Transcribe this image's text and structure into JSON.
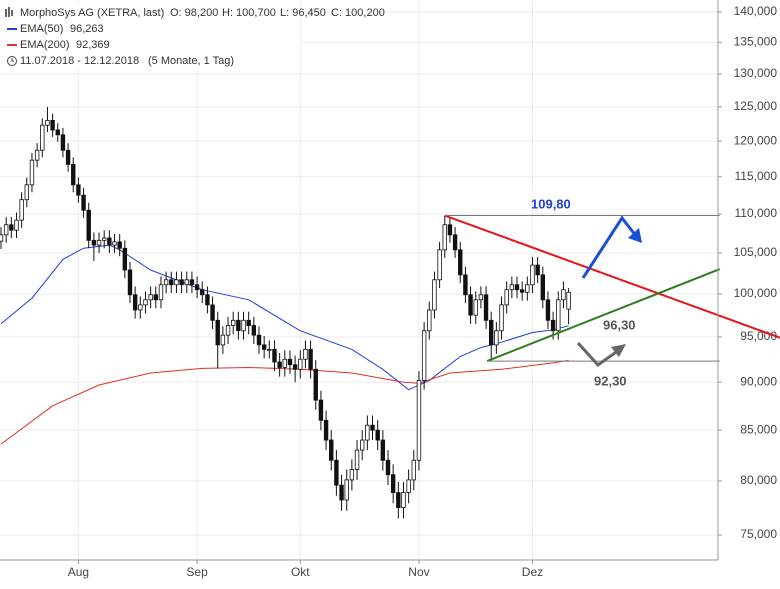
{
  "chart_data": {
    "type": "candlestick",
    "header": {
      "title": "MorphoSys AG (XETRA, last)",
      "open": "O: 98,200",
      "high": "H: 100,700",
      "low": "L: 96,450",
      "close": "C: 100,200",
      "period": "11.07.2018 - 12.12.2018",
      "span": "(5 Monate, 1 Tag)"
    },
    "categories": [
      null,
      null,
      null,
      null,
      null,
      null,
      null,
      null,
      null,
      null,
      null,
      null,
      null,
      null,
      null,
      "Aug",
      null,
      null,
      null,
      null,
      null,
      null,
      null,
      null,
      null,
      null,
      null,
      null,
      null,
      null,
      null,
      null,
      null,
      null,
      null,
      null,
      null,
      null,
      "Sep",
      null,
      null,
      null,
      null,
      null,
      null,
      null,
      null,
      null,
      null,
      null,
      null,
      null,
      null,
      null,
      null,
      null,
      null,
      null,
      "Okt",
      null,
      null,
      null,
      null,
      null,
      null,
      null,
      null,
      null,
      null,
      null,
      null,
      null,
      null,
      null,
      null,
      null,
      null,
      null,
      null,
      null,
      null,
      "Nov",
      null,
      null,
      null,
      null,
      null,
      null,
      null,
      null,
      null,
      null,
      null,
      null,
      null,
      null,
      null,
      null,
      null,
      null,
      null,
      null,
      null,
      "Dez",
      null,
      null,
      null,
      null,
      null,
      null,
      null
    ],
    "open": [
      106.5,
      107.3,
      108.6,
      107.9,
      109.2,
      111.9,
      113.9,
      117.3,
      118.7,
      122.3,
      123.0,
      121.6,
      120.9,
      118.7,
      116.7,
      113.9,
      112.5,
      110.5,
      106.6,
      106.0,
      106.6,
      106.9,
      106.0,
      106.4,
      105.6,
      102.9,
      99.9,
      98.1,
      98.7,
      99.3,
      99.9,
      99.3,
      101.1,
      101.7,
      101.1,
      101.7,
      101.1,
      101.7,
      101.1,
      100.5,
      99.9,
      98.7,
      96.9,
      94.1,
      95.2,
      96.3,
      96.9,
      95.7,
      96.9,
      96.3,
      95.2,
      94.1,
      93.6,
      93.6,
      92.2,
      91.6,
      92.5,
      91.9,
      91.4,
      92.5,
      93.6,
      91.4,
      88.1,
      86.0,
      84.0,
      82.0,
      79.6,
      78.2,
      80.1,
      81.1,
      83.0,
      84.0,
      85.5,
      85.0,
      84.0,
      82.0,
      80.6,
      78.9,
      77.5,
      78.9,
      80.1,
      82.0,
      90.2,
      95.7,
      98.1,
      101.7,
      105.4,
      108.6,
      107.3,
      105.4,
      102.3,
      99.9,
      97.5,
      99.3,
      99.9,
      96.9,
      94.1,
      95.7,
      98.7,
      100.5,
      101.1,
      100.5,
      100.2,
      101.1,
      103.5,
      102.3,
      99.3,
      96.9,
      95.7,
      99.3,
      98.2
    ],
    "high": [
      108.3,
      109.6,
      109.6,
      110.2,
      112.9,
      114.9,
      118.3,
      119.7,
      123.3,
      125.0,
      124.0,
      122.6,
      121.9,
      119.7,
      117.7,
      114.9,
      113.5,
      111.5,
      107.6,
      107.6,
      107.9,
      107.9,
      107.4,
      107.4,
      106.6,
      103.9,
      100.9,
      99.7,
      100.3,
      100.9,
      100.9,
      102.1,
      102.7,
      102.7,
      102.7,
      102.7,
      102.7,
      102.7,
      102.1,
      101.5,
      100.9,
      99.7,
      97.9,
      96.2,
      97.3,
      97.9,
      97.9,
      97.9,
      97.9,
      97.3,
      96.2,
      95.1,
      94.6,
      94.6,
      93.2,
      93.5,
      93.5,
      92.9,
      93.5,
      94.6,
      94.6,
      92.4,
      89.1,
      87.0,
      85.0,
      83.0,
      80.6,
      81.1,
      82.1,
      84.0,
      85.0,
      86.5,
      86.5,
      86.0,
      85.0,
      83.0,
      81.6,
      79.9,
      79.9,
      81.1,
      83.0,
      91.2,
      96.7,
      99.1,
      102.7,
      106.4,
      109.8,
      109.6,
      108.3,
      106.4,
      103.3,
      100.9,
      100.3,
      100.9,
      100.9,
      97.9,
      96.7,
      99.7,
      101.5,
      102.1,
      102.1,
      101.5,
      102.1,
      104.5,
      104.5,
      103.3,
      100.3,
      97.9,
      100.3,
      101.5,
      100.7
    ],
    "low": [
      105.5,
      106.3,
      106.9,
      106.9,
      108.2,
      110.9,
      112.9,
      116.3,
      117.7,
      121.3,
      120.6,
      119.9,
      117.7,
      115.7,
      112.9,
      111.5,
      109.5,
      105.6,
      104.0,
      105.0,
      105.6,
      105.0,
      105.0,
      104.6,
      101.9,
      98.9,
      97.1,
      97.1,
      97.7,
      98.3,
      98.3,
      98.3,
      100.1,
      100.1,
      100.1,
      100.1,
      100.1,
      100.1,
      99.5,
      98.9,
      97.7,
      95.9,
      91.5,
      93.1,
      94.2,
      95.3,
      94.7,
      94.7,
      95.3,
      94.2,
      93.1,
      92.6,
      92.6,
      91.2,
      90.6,
      90.6,
      90.9,
      90.0,
      90.4,
      91.5,
      90.4,
      87.1,
      85.0,
      83.0,
      81.0,
      78.6,
      77.2,
      77.2,
      79.1,
      80.1,
      82.0,
      83.0,
      84.0,
      83.0,
      81.0,
      79.6,
      77.9,
      76.5,
      76.5,
      77.9,
      79.1,
      81.0,
      89.2,
      94.7,
      97.1,
      100.7,
      104.4,
      106.3,
      104.4,
      101.3,
      98.9,
      96.5,
      96.5,
      98.3,
      95.9,
      92.3,
      93.1,
      94.7,
      97.7,
      99.5,
      99.5,
      99.2,
      99.2,
      100.1,
      101.3,
      98.3,
      95.9,
      94.7,
      94.7,
      98.3,
      96.45
    ],
    "close": [
      107.3,
      108.6,
      107.9,
      109.2,
      111.9,
      113.9,
      117.3,
      118.7,
      122.3,
      123.0,
      121.6,
      120.9,
      118.7,
      116.7,
      113.9,
      112.5,
      110.5,
      106.6,
      106.0,
      106.6,
      106.9,
      106.0,
      106.4,
      105.6,
      102.9,
      99.9,
      98.1,
      98.7,
      99.3,
      99.9,
      99.3,
      101.1,
      101.7,
      101.1,
      101.7,
      101.1,
      101.7,
      101.1,
      100.5,
      99.9,
      98.7,
      96.9,
      94.1,
      95.2,
      96.3,
      96.9,
      95.7,
      96.9,
      96.3,
      95.2,
      94.1,
      93.6,
      93.6,
      92.2,
      91.6,
      92.5,
      91.9,
      91.4,
      92.5,
      93.6,
      91.4,
      88.1,
      86.0,
      84.0,
      82.0,
      79.6,
      78.2,
      80.1,
      81.1,
      83.0,
      84.0,
      85.5,
      85.0,
      84.0,
      82.0,
      80.6,
      78.9,
      77.5,
      78.9,
      80.1,
      82.0,
      90.2,
      95.7,
      98.1,
      101.7,
      105.4,
      108.6,
      107.3,
      105.4,
      102.3,
      99.9,
      97.5,
      99.3,
      99.9,
      96.9,
      94.1,
      95.7,
      98.7,
      100.5,
      101.1,
      100.5,
      100.2,
      101.1,
      103.5,
      102.3,
      99.3,
      96.9,
      95.7,
      99.3,
      100.5,
      100.2
    ],
    "up_color": "#ffffff",
    "down_color": "#111111",
    "lines": [
      {
        "name": "EMA(50)",
        "color": "#1f3fd6",
        "last_label": "96,263",
        "x": [
          0,
          6,
          12,
          16,
          21,
          23,
          29,
          39,
          48,
          58,
          68,
          74,
          79,
          83,
          89,
          93,
          97,
          103,
          107,
          110
        ],
        "values": [
          96.5,
          99.5,
          104.2,
          105.6,
          106.0,
          105.4,
          102.9,
          100.5,
          99.3,
          95.7,
          93.6,
          91.4,
          89.2,
          90.2,
          92.8,
          93.8,
          94.4,
          95.5,
          95.8,
          96.263
        ]
      },
      {
        "name": "EMA(200)",
        "color": "#e0302a",
        "last_label": "92,369",
        "x": [
          0,
          10,
          19,
          29,
          39,
          48,
          58,
          68,
          78,
          81,
          87,
          97,
          107,
          110
        ],
        "values": [
          83.6,
          87.5,
          89.7,
          91.0,
          91.5,
          91.6,
          91.4,
          91.0,
          90.0,
          89.9,
          91.0,
          91.4,
          92.1,
          92.369
        ]
      }
    ],
    "trendlines": [
      {
        "color": "#e8141a",
        "x": [
          86,
          151
        ],
        "values": [
          109.8,
          94.9
        ]
      },
      {
        "color": "#2e7d1e",
        "x": [
          94.2,
          139.3
        ],
        "values": [
          92.3,
          103.0
        ]
      }
    ],
    "levels": [
      {
        "value": 109.8,
        "label": "109,80",
        "x": [
          86,
          139.3
        ]
      },
      {
        "value": 92.3,
        "label": "92,30",
        "x": [
          94.2,
          139.3
        ]
      }
    ],
    "target": {
      "value": 96.3,
      "label": "96,30"
    },
    "log_scale": true,
    "ylim": [
      72.8,
      142
    ],
    "yticks": [
      {
        "value": 75,
        "label": "75,000"
      },
      {
        "value": 80,
        "label": "80,000"
      },
      {
        "value": 85,
        "label": "85,000"
      },
      {
        "value": 90,
        "label": "90,000"
      },
      {
        "value": 95,
        "label": "95,000"
      },
      {
        "value": 100,
        "label": "100,000"
      },
      {
        "value": 105,
        "label": "105,000"
      },
      {
        "value": 110,
        "label": "110,000"
      },
      {
        "value": 115,
        "label": "115,000"
      },
      {
        "value": 120,
        "label": "120,000"
      },
      {
        "value": 125,
        "label": "125,000"
      },
      {
        "value": 130,
        "label": "130,000"
      },
      {
        "value": 135,
        "label": "135,000"
      },
      {
        "value": 140,
        "label": "140,000"
      }
    ],
    "grid": true
  }
}
